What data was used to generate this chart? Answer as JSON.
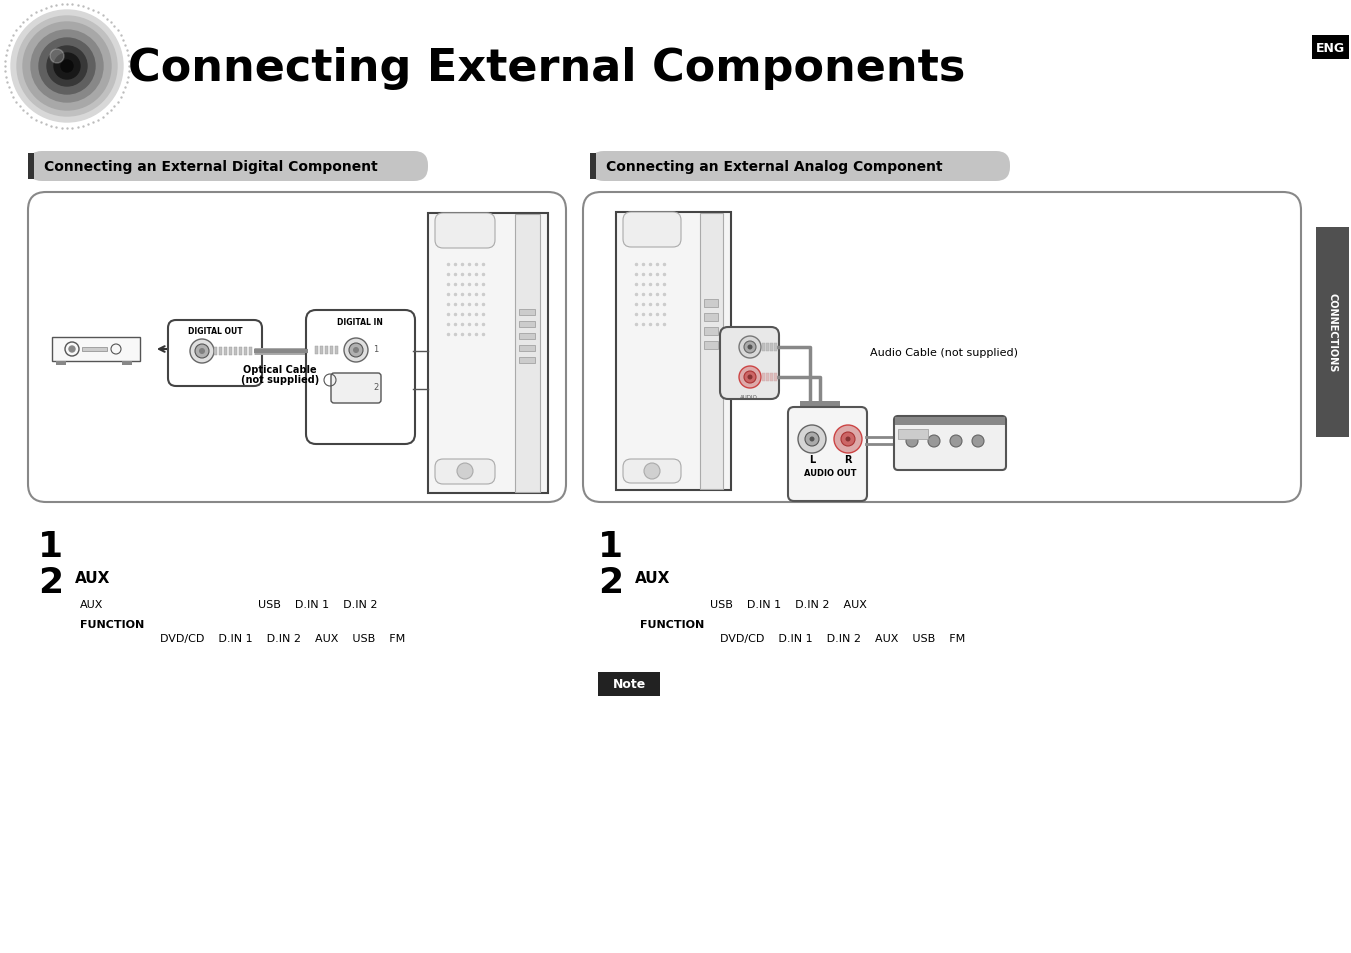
{
  "title": "Connecting External Components",
  "en_label": "ENG",
  "section1_header": "Connecting an External Digital Component",
  "section2_header": "Connecting an External Analog Component",
  "connections_sidebar": "CONNECTIONS",
  "digital_out_label": "DIGITAL OUT",
  "digital_in_label": "DIGITAL IN",
  "optical_cable_label1": "Optical Cable",
  "optical_cable_label2": "(not supplied)",
  "audio_cable_label": "Audio Cable (not supplied)",
  "audio_out_label": "AUDIO OUT",
  "l_label": "L",
  "r_label": "R",
  "step1_left": "1",
  "step2_left_num": "2",
  "step2_left_bold": "AUX",
  "step2_left_aux": "AUX",
  "step2_left_usb": "USB    D.IN 1    D.IN 2",
  "step2_left_function": "FUNCTION",
  "step2_left_dvd": "DVD/CD    D.IN 1    D.IN 2    AUX    USB    FM",
  "step1_right": "1",
  "step2_right_num": "2",
  "step2_right_bold": "AUX",
  "step2_right_usb": "USB    D.IN 1    D.IN 2    AUX",
  "step2_right_function": "FUNCTION",
  "step2_right_dvd": "DVD/CD    D.IN 1    D.IN 2    AUX    USB    FM",
  "note_label": "Note",
  "bg_color": "#ffffff",
  "header_bg": "#c4c4c4",
  "sidebar_bg": "#505050",
  "en_bg": "#000000"
}
